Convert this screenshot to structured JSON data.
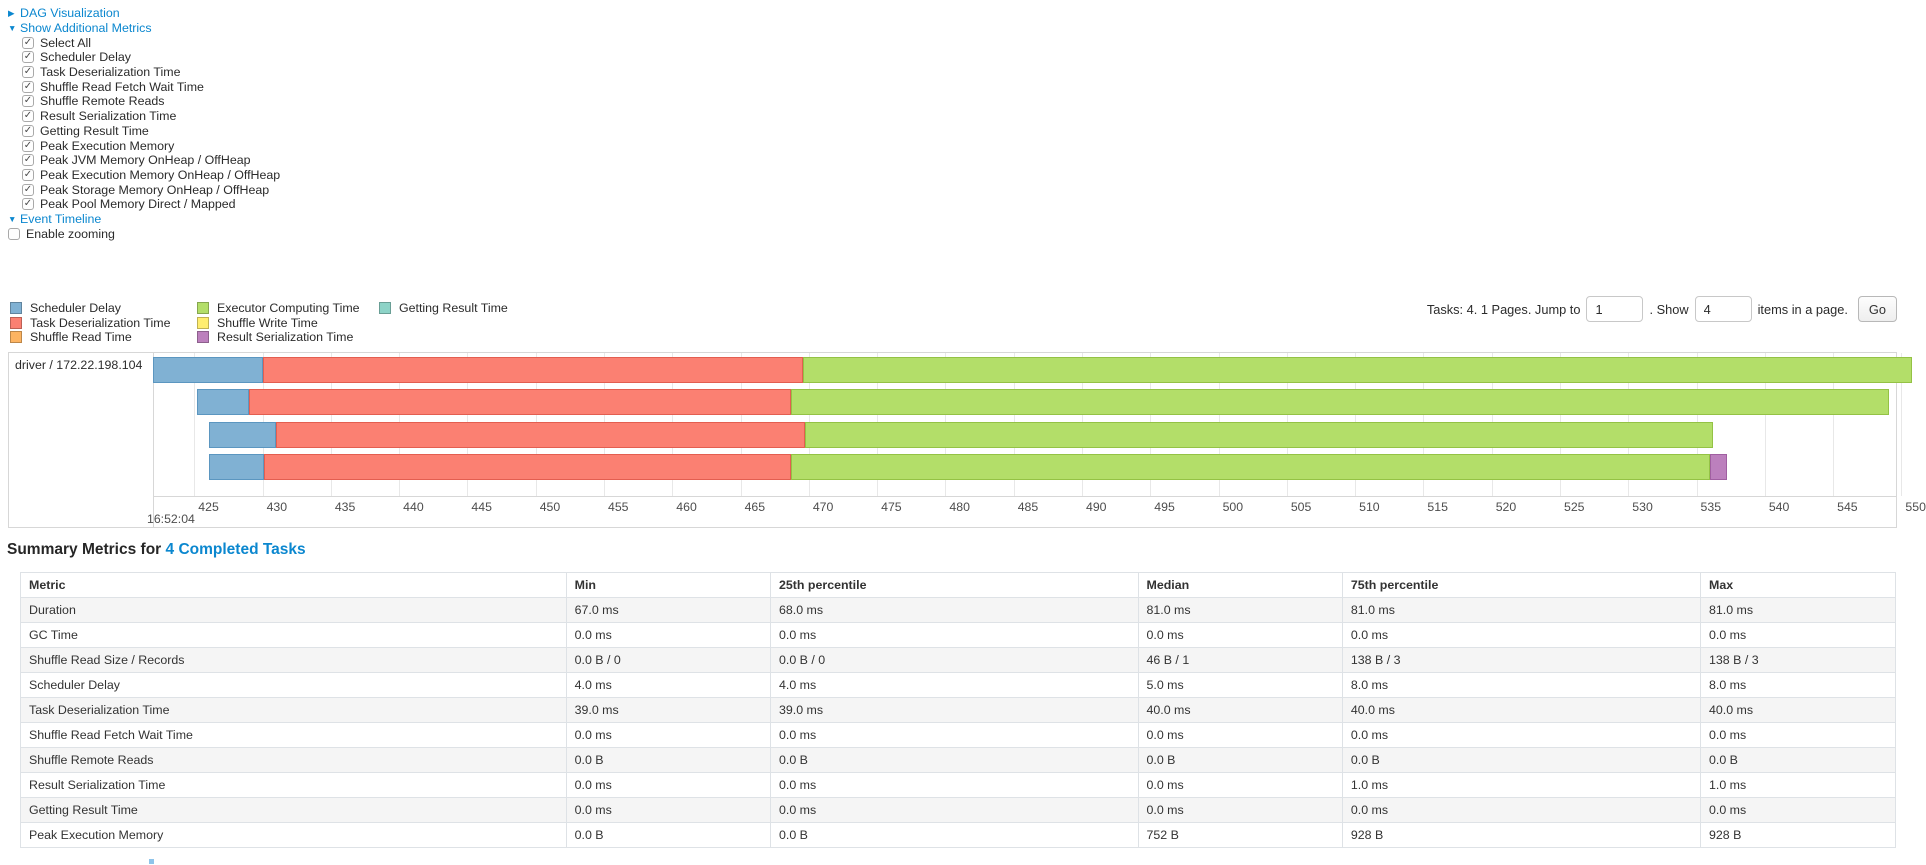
{
  "accent_color": "#0b87cf",
  "controls": {
    "dag_visualization": "DAG Visualization",
    "show_additional_metrics": "Show Additional Metrics",
    "metric_checkboxes": [
      "Select All",
      "Scheduler Delay",
      "Task Deserialization Time",
      "Shuffle Read Fetch Wait Time",
      "Shuffle Remote Reads",
      "Result Serialization Time",
      "Getting Result Time",
      "Peak Execution Memory",
      "Peak JVM Memory OnHeap / OffHeap",
      "Peak Execution Memory OnHeap / OffHeap",
      "Peak Storage Memory OnHeap / OffHeap",
      "Peak Pool Memory Direct / Mapped"
    ],
    "event_timeline": "Event Timeline",
    "enable_zooming_label": "Enable zooming",
    "enable_zooming_checked": false
  },
  "pagination": {
    "tasks_info": "Tasks: 4. 1 Pages. Jump to",
    "jump_value": "1",
    "show_label": ". Show",
    "show_value": "4",
    "items_label": "items in a page.",
    "go_label": "Go"
  },
  "chart_data": {
    "type": "timeline-gantt",
    "group_label": "driver / 172.22.198.104",
    "legend": [
      {
        "key": "scheduler_delay",
        "label": "Scheduler Delay"
      },
      {
        "key": "task_deserialization",
        "label": "Task Deserialization Time"
      },
      {
        "key": "shuffle_read",
        "label": "Shuffle Read Time"
      },
      {
        "key": "executor_computing",
        "label": "Executor Computing Time"
      },
      {
        "key": "shuffle_write",
        "label": "Shuffle Write Time"
      },
      {
        "key": "result_serialization",
        "label": "Result Serialization Time"
      },
      {
        "key": "getting_result",
        "label": "Getting Result Time"
      }
    ],
    "colors": {
      "scheduler_delay": {
        "fill": "#80B1D3",
        "border": "#5B96C0"
      },
      "task_deserialization": {
        "fill": "#FB8072",
        "border": "#E35E50"
      },
      "shuffle_read": {
        "fill": "#FDB462",
        "border": "#E89A45"
      },
      "executor_computing": {
        "fill": "#B3DE69",
        "border": "#94C245"
      },
      "shuffle_write": {
        "fill": "#FFED6F",
        "border": "#E3CF4B"
      },
      "result_serialization": {
        "fill": "#BC80BD",
        "border": "#A05FA1"
      },
      "getting_result": {
        "fill": "#8DD3C7",
        "border": "#67B8AA"
      }
    },
    "x_axis": {
      "window_min": 422.05,
      "window_max": 549.75,
      "tick_start": 425,
      "tick_end": 550,
      "tick_step": 5,
      "major_label": "16:52:04"
    },
    "tasks": [
      {
        "segments": [
          {
            "metric": "scheduler_delay",
            "start": 422.0,
            "end": 430.0
          },
          {
            "metric": "task_deserialization",
            "start": 430.0,
            "end": 469.6
          },
          {
            "metric": "executor_computing",
            "start": 469.6,
            "end": 550.8
          }
        ]
      },
      {
        "segments": [
          {
            "metric": "scheduler_delay",
            "start": 425.2,
            "end": 429.0
          },
          {
            "metric": "task_deserialization",
            "start": 429.0,
            "end": 468.7
          },
          {
            "metric": "executor_computing",
            "start": 468.7,
            "end": 549.1
          }
        ]
      },
      {
        "segments": [
          {
            "metric": "scheduler_delay",
            "start": 426.1,
            "end": 431.0
          },
          {
            "metric": "task_deserialization",
            "start": 431.0,
            "end": 469.7
          },
          {
            "metric": "executor_computing",
            "start": 469.7,
            "end": 536.2
          }
        ]
      },
      {
        "segments": [
          {
            "metric": "scheduler_delay",
            "start": 426.1,
            "end": 430.1
          },
          {
            "metric": "task_deserialization",
            "start": 430.1,
            "end": 468.7
          },
          {
            "metric": "executor_computing",
            "start": 468.7,
            "end": 536.0
          },
          {
            "metric": "result_serialization",
            "start": 536.0,
            "end": 537.2
          }
        ]
      }
    ]
  },
  "summary": {
    "title_prefix": "Summary Metrics for",
    "title_link": "4 Completed Tasks",
    "table": {
      "headers": [
        "Metric",
        "Min",
        "25th percentile",
        "Median",
        "75th percentile",
        "Max"
      ],
      "col_widths_pct": [
        29.1,
        10.9,
        19.6,
        10.9,
        19.1,
        10.4
      ],
      "rows": [
        [
          "Duration",
          "67.0 ms",
          "68.0 ms",
          "81.0 ms",
          "81.0 ms",
          "81.0 ms"
        ],
        [
          "GC Time",
          "0.0 ms",
          "0.0 ms",
          "0.0 ms",
          "0.0 ms",
          "0.0 ms"
        ],
        [
          "Shuffle Read Size / Records",
          "0.0 B / 0",
          "0.0 B / 0",
          "46 B / 1",
          "138 B / 3",
          "138 B / 3"
        ],
        [
          "Scheduler Delay",
          "4.0 ms",
          "4.0 ms",
          "5.0 ms",
          "8.0 ms",
          "8.0 ms"
        ],
        [
          "Task Deserialization Time",
          "39.0 ms",
          "39.0 ms",
          "40.0 ms",
          "40.0 ms",
          "40.0 ms"
        ],
        [
          "Shuffle Read Fetch Wait Time",
          "0.0 ms",
          "0.0 ms",
          "0.0 ms",
          "0.0 ms",
          "0.0 ms"
        ],
        [
          "Shuffle Remote Reads",
          "0.0 B",
          "0.0 B",
          "0.0 B",
          "0.0 B",
          "0.0 B"
        ],
        [
          "Result Serialization Time",
          "0.0 ms",
          "0.0 ms",
          "0.0 ms",
          "1.0 ms",
          "1.0 ms"
        ],
        [
          "Getting Result Time",
          "0.0 ms",
          "0.0 ms",
          "0.0 ms",
          "0.0 ms",
          "0.0 ms"
        ],
        [
          "Peak Execution Memory",
          "0.0 B",
          "0.0 B",
          "752 B",
          "928 B",
          "928 B"
        ]
      ]
    }
  }
}
